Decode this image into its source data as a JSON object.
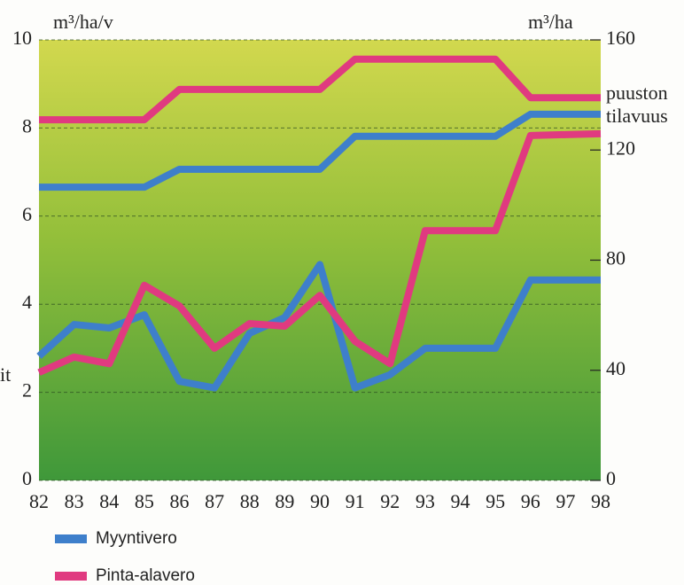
{
  "chart_data": {
    "type": "line",
    "y_unit": "m³/ha/v",
    "y2_unit": "m³/ha",
    "annotation": [
      "puuston",
      "tilavuus"
    ],
    "left_note": "it",
    "categories": [
      "82",
      "83",
      "84",
      "85",
      "86",
      "87",
      "88",
      "89",
      "90",
      "91",
      "92",
      "93",
      "94",
      "95",
      "96",
      "97",
      "98"
    ],
    "series": [
      {
        "name": "Myyntivero",
        "color": "#3e7fcb",
        "values": [
          2.82,
          3.54,
          3.46,
          3.76,
          2.25,
          2.1,
          3.34,
          3.7,
          4.9,
          2.1,
          2.4,
          3.0,
          3.0,
          3.0,
          4.55,
          4.55,
          4.55
        ],
        "volume_values": [
          106.5,
          106.5,
          106.5,
          106.5,
          113,
          113,
          113,
          113,
          113,
          125,
          125,
          125,
          125,
          125,
          133,
          133,
          133
        ]
      },
      {
        "name": "Pinta-alavero",
        "color": "#e03a80",
        "values": [
          2.45,
          2.8,
          2.65,
          4.43,
          3.96,
          3.0,
          3.56,
          3.5,
          4.2,
          3.16,
          2.65,
          5.67,
          5.67,
          5.67,
          7.83,
          7.85,
          7.87
        ],
        "volume_values": [
          131,
          131,
          131,
          131,
          142,
          142,
          142,
          142,
          142,
          153,
          153,
          153,
          153,
          153,
          139,
          139,
          139
        ]
      }
    ],
    "ylim": [
      0,
      10
    ],
    "yticks": [
      0,
      2,
      4,
      6,
      8,
      10
    ],
    "y2lim": [
      0,
      160
    ],
    "y2ticks": [
      0,
      40,
      80,
      120,
      160
    ],
    "grid": true
  }
}
